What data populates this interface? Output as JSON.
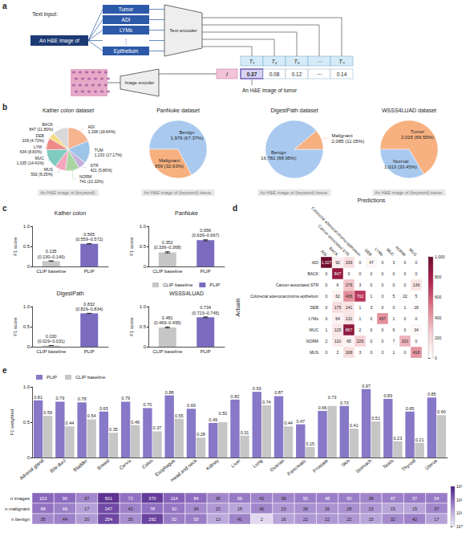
{
  "diagram": {
    "panel_label": "a",
    "text_input_label": "Text input:",
    "prompt": "An H&E image of",
    "keywords": [
      "Tumor",
      "ADI",
      "LYMs",
      "⋮",
      "Epithelium"
    ],
    "text_encoder": "Text encoder",
    "image_encoder": "Image encoder",
    "image_token": "I",
    "text_tokens": [
      "T₁",
      "T₂",
      "T₃",
      "⋯",
      "Tₙ"
    ],
    "scores": [
      "0.37",
      "0.08",
      "0.12",
      "⋯",
      "0.14"
    ],
    "caption": "An H&E image of tumor"
  },
  "chart_data": [
    {
      "type": "pie",
      "panel_label": "b",
      "title": "Kather colon dataset",
      "subtitle": "An H&E image of {keyword}.",
      "categories": [
        "ADI",
        "TUM",
        "STR",
        "NORM",
        "MUS",
        "MUC",
        "LYM",
        "DEB",
        "BACK"
      ],
      "values": [
        1338,
        1233,
        421,
        741,
        592,
        1035,
        634,
        339,
        847
      ],
      "value_labels": [
        "1,338 (18.64%)",
        "1,233 (17.17%)",
        "421 (5.86%)",
        "741 (10.32%)",
        "592 (8.25%)",
        "1,035 (14.41%)",
        "634 (8.83%)",
        "339 (4.72%)",
        "847 (11.80%)"
      ],
      "colors": [
        "#f6b48f",
        "#9ec5e8",
        "#c5b0dd",
        "#a8d5a2",
        "#f3a6bd",
        "#7fcbbf",
        "#ee8a8a",
        "#f5dc86",
        "#d9d9d9"
      ],
      "data_labels": true
    },
    {
      "type": "pie",
      "title": "PanNuke dataset",
      "subtitle": "An H&E image of {keyword} tissue.",
      "categories": [
        "Benign",
        "Malignant"
      ],
      "values": [
        1979,
        959
      ],
      "value_labels": [
        "1,979 (67.37%)",
        "959 (32.63%)"
      ],
      "colors": [
        "#a9c9ef",
        "#f7b07f"
      ],
      "data_labels": true
    },
    {
      "type": "pie",
      "title": "DigestPath dataset",
      "subtitle": "An H&E image of {keyword} tissue.",
      "categories": [
        "Benign",
        "Malignant"
      ],
      "values": [
        16781,
        2085
      ],
      "value_labels": [
        "16,781 (88.95%)",
        "2,085 (11.05%)"
      ],
      "colors": [
        "#a9c9ef",
        "#f7b07f"
      ],
      "data_labels": true
    },
    {
      "type": "pie",
      "title": "WSSS4LUAD dataset",
      "subtitle": "An H&E image of {keyword} tissue.",
      "categories": [
        "Tumor",
        "Normal"
      ],
      "values": [
        2015,
        1013
      ],
      "value_labels": [
        "2,015 (66.55%)",
        "1,013 (33.45%)"
      ],
      "colors": [
        "#f7b07f",
        "#a9c9ef"
      ],
      "data_labels": true
    },
    {
      "type": "bar",
      "panel_label": "c",
      "title": "Kather colon",
      "categories": [
        "CLIP baseline",
        "PLIP"
      ],
      "values": [
        0.135,
        0.565
      ],
      "ci": [
        [
          0.13,
          0.14
        ],
        [
          0.559,
          0.572
        ]
      ],
      "value_labels": [
        "0.135\n(0.130–0.140)",
        "0.565\n(0.559–0.572)"
      ],
      "colors": [
        "#c6c6c6",
        "#7b6bbf"
      ],
      "ylabel": "F1 score",
      "ylim": [
        0,
        1
      ],
      "yticks": [
        0,
        0.5,
        {
          "value": 1,
          "label": "1.0"
        }
      ],
      "data_labels": true
    },
    {
      "type": "bar",
      "title": "PanNuke",
      "categories": [
        "CLIP baseline",
        "PLIP"
      ],
      "values": [
        0.352,
        0.656
      ],
      "ci": [
        [
          0.336,
          0.368
        ],
        [
          0.639,
          0.667
        ]
      ],
      "value_labels": [
        "0.352\n(0.336–0.368)",
        "0.656\n(0.639–0.667)"
      ],
      "colors": [
        "#c6c6c6",
        "#7b6bbf"
      ],
      "ylabel": "F1 score",
      "ylim": [
        0,
        1
      ],
      "yticks": [
        0,
        0.5,
        {
          "value": 1,
          "label": "1.0"
        }
      ],
      "data_labels": true,
      "legend": "lower right"
    },
    {
      "type": "bar",
      "title": "DigestPath",
      "categories": [
        "CLIP baseline",
        "PLIP"
      ],
      "values": [
        0.03,
        0.832
      ],
      "ci": [
        [
          0.029,
          0.031
        ],
        [
          0.829,
          0.834
        ]
      ],
      "value_labels": [
        "0.030\n(0.029–0.031)",
        "0.832\n(0.829–0.834)"
      ],
      "colors": [
        "#c6c6c6",
        "#7b6bbf"
      ],
      "ylabel": "F1 score",
      "ylim": [
        0,
        1
      ],
      "yticks": [
        0,
        0.5,
        {
          "value": 1,
          "label": "1.0"
        }
      ],
      "data_labels": true
    },
    {
      "type": "bar",
      "title": "WSSS4LUAD",
      "categories": [
        "CLIP baseline",
        "PLIP"
      ],
      "values": [
        0.481,
        0.734
      ],
      "ci": [
        [
          0.469,
          0.495
        ],
        [
          0.723,
          0.745
        ]
      ],
      "value_labels": [
        "0.481\n(0.469–0.495)",
        "0.734\n(0.723–0.745)"
      ],
      "colors": [
        "#c6c6c6",
        "#7b6bbf"
      ],
      "ylabel": "F1 score",
      "ylim": [
        0,
        1
      ],
      "yticks": [
        0,
        0.5,
        {
          "value": 1,
          "label": "1.0"
        }
      ],
      "data_labels": true
    },
    {
      "type": "heatmap",
      "panel_label": "d",
      "xlabel": "Predictions",
      "ylabel": "Actuals",
      "x": [
        "ADI",
        "BACK",
        "Cancer-associated STR",
        "Colorectal adenocarcinoma epithelium",
        "DEB",
        "LYMs",
        "MUC",
        "NORM",
        "MUS"
      ],
      "y": [
        "ADI",
        "BACK",
        "Cancer-associated STR",
        "Colorectal adenocarcinoma epithelium",
        "DEB",
        "LYMs",
        "MUC",
        "NORM",
        "MUS"
      ],
      "cells": [
        [
          1027,
          92,
          169,
          0,
          47,
          0,
          3,
          0,
          0
        ],
        [
          0,
          847,
          0,
          0,
          0,
          0,
          0,
          0,
          0
        ],
        [
          0,
          6,
          276,
          3,
          0,
          0,
          0,
          0,
          136
        ],
        [
          0,
          62,
          436,
          702,
          1,
          0,
          5,
          22,
          5
        ],
        [
          0,
          175,
          141,
          1,
          3,
          0,
          0,
          1,
          18
        ],
        [
          0,
          64,
          131,
          1,
          0,
          437,
          1,
          0,
          0
        ],
        [
          1,
          125,
          867,
          2,
          0,
          0,
          6,
          0,
          34
        ],
        [
          2,
          110,
          65,
          226,
          0,
          0,
          7,
          331,
          0
        ],
        [
          0,
          2,
          168,
          3,
          0,
          0,
          1,
          0,
          418
        ]
      ],
      "cell_labels": [
        [
          "1,027",
          "92",
          "169",
          "0",
          "47",
          "0",
          "3",
          "0",
          "0"
        ],
        [
          "0",
          "847",
          "0",
          "0",
          "0",
          "0",
          "0",
          "0",
          "0"
        ],
        [
          "0",
          "6",
          "276",
          "3",
          "0",
          "0",
          "0",
          "0",
          "136"
        ],
        [
          "0",
          "62",
          "436",
          "702",
          "1",
          "0",
          "5",
          "22",
          "5"
        ],
        [
          "0",
          "175",
          "141",
          "1",
          "3",
          "0",
          "0",
          "1",
          "18"
        ],
        [
          "0",
          "64",
          "131",
          "1",
          "0",
          "437",
          "1",
          "0",
          "0"
        ],
        [
          "1",
          "125",
          "867",
          "2",
          "0",
          "0",
          "6",
          "0",
          "34"
        ],
        [
          "2",
          "110",
          "65",
          "226",
          "0",
          "0",
          "7",
          "331",
          "0"
        ],
        [
          "0",
          "2",
          "168",
          "3",
          "0",
          "0",
          "1",
          "0",
          "418"
        ]
      ],
      "colorbar": {
        "range": [
          0,
          1000
        ],
        "ticks": [
          0,
          200,
          400,
          600,
          800,
          {
            "value": 1000,
            "label": "1,000"
          }
        ]
      },
      "data_labels": true
    },
    {
      "type": "bar",
      "panel_label": "e",
      "categories": [
        "Adrenal gland",
        "Bile duct",
        "Bladder",
        "Breast",
        "Cervix",
        "Colon",
        "Esophagus",
        "Head and neck",
        "Kidney",
        "Liver",
        "Lung",
        "Ovarian",
        "Pancreatic",
        "Prostate",
        "Skin",
        "Stomach",
        "Testis",
        "Thyroid",
        "Uterus"
      ],
      "series": [
        {
          "name": "PLIP",
          "color": "#8878c8",
          "values": [
            0.81,
            0.79,
            0.78,
            0.65,
            0.79,
            0.7,
            0.88,
            0.69,
            0.49,
            0.82,
            0.93,
            0.87,
            0.47,
            0.66,
            0.73,
            0.97,
            0.83,
            0.65,
            0.85
          ],
          "value_labels": [
            "0.81",
            "0.79",
            "0.78",
            "0.65",
            "0.79",
            "0.70",
            "0.88",
            "0.69",
            "0.49",
            "0.82",
            "0.93",
            "0.87",
            "0.47",
            "0.66",
            "0.73",
            "0.97",
            "0.83",
            "0.65",
            "0.85"
          ]
        },
        {
          "name": "CLIP baseline",
          "color": "#c6c6c6",
          "values": [
            0.59,
            0.44,
            0.54,
            0.35,
            0.46,
            0.37,
            0.55,
            0.28,
            0.5,
            0.31,
            0.74,
            0.44,
            0.15,
            0.73,
            0.41,
            0.51,
            0.23,
            0.21,
            0.6
          ],
          "value_labels": [
            "0.59",
            "0.44",
            "0.54",
            "0.35",
            "0.46",
            "0.37",
            "0.55",
            "0.28",
            "0.50",
            "0.31",
            "0.74",
            "0.44",
            "0.15",
            "0.73",
            "0.41",
            "0.51",
            "0.23",
            "0.21",
            "0.60"
          ]
        }
      ],
      "ylabel": "F1 weighted",
      "ylim": [
        0,
        1
      ],
      "yticks": [
        0,
        0.5,
        {
          "value": 1,
          "label": "1.0"
        }
      ],
      "data_labels": true,
      "legend": "upper left"
    },
    {
      "type": "heatmap",
      "y": [
        "n images",
        "n malignant",
        "n benign"
      ],
      "cells": [
        [
          103,
          90,
          37,
          501,
          72,
          370,
          114,
          84,
          35,
          56,
          42,
          39,
          50,
          48,
          50,
          38,
          47,
          57,
          54
        ],
        [
          68,
          46,
          17,
          247,
          42,
          78,
          62,
          34,
          22,
          15,
          40,
          23,
          28,
          26,
          28,
          23,
          15,
          15,
          37
        ],
        [
          35,
          44,
          20,
          254,
          30,
          292,
          52,
          50,
          13,
          41,
          2,
          16,
          22,
          22,
          22,
          15,
          32,
          42,
          17
        ]
      ],
      "colorbar": {
        "range": [
          1,
          1000
        ],
        "ticks": [
          {
            "value": 1,
            "label": "10⁰"
          },
          {
            "value": 10,
            "label": "10¹"
          },
          {
            "value": 100,
            "label": "10²"
          },
          {
            "value": 1000,
            "label": "10³"
          }
        ]
      },
      "log": true,
      "data_labels": true,
      "tick_labels": "y"
    }
  ]
}
